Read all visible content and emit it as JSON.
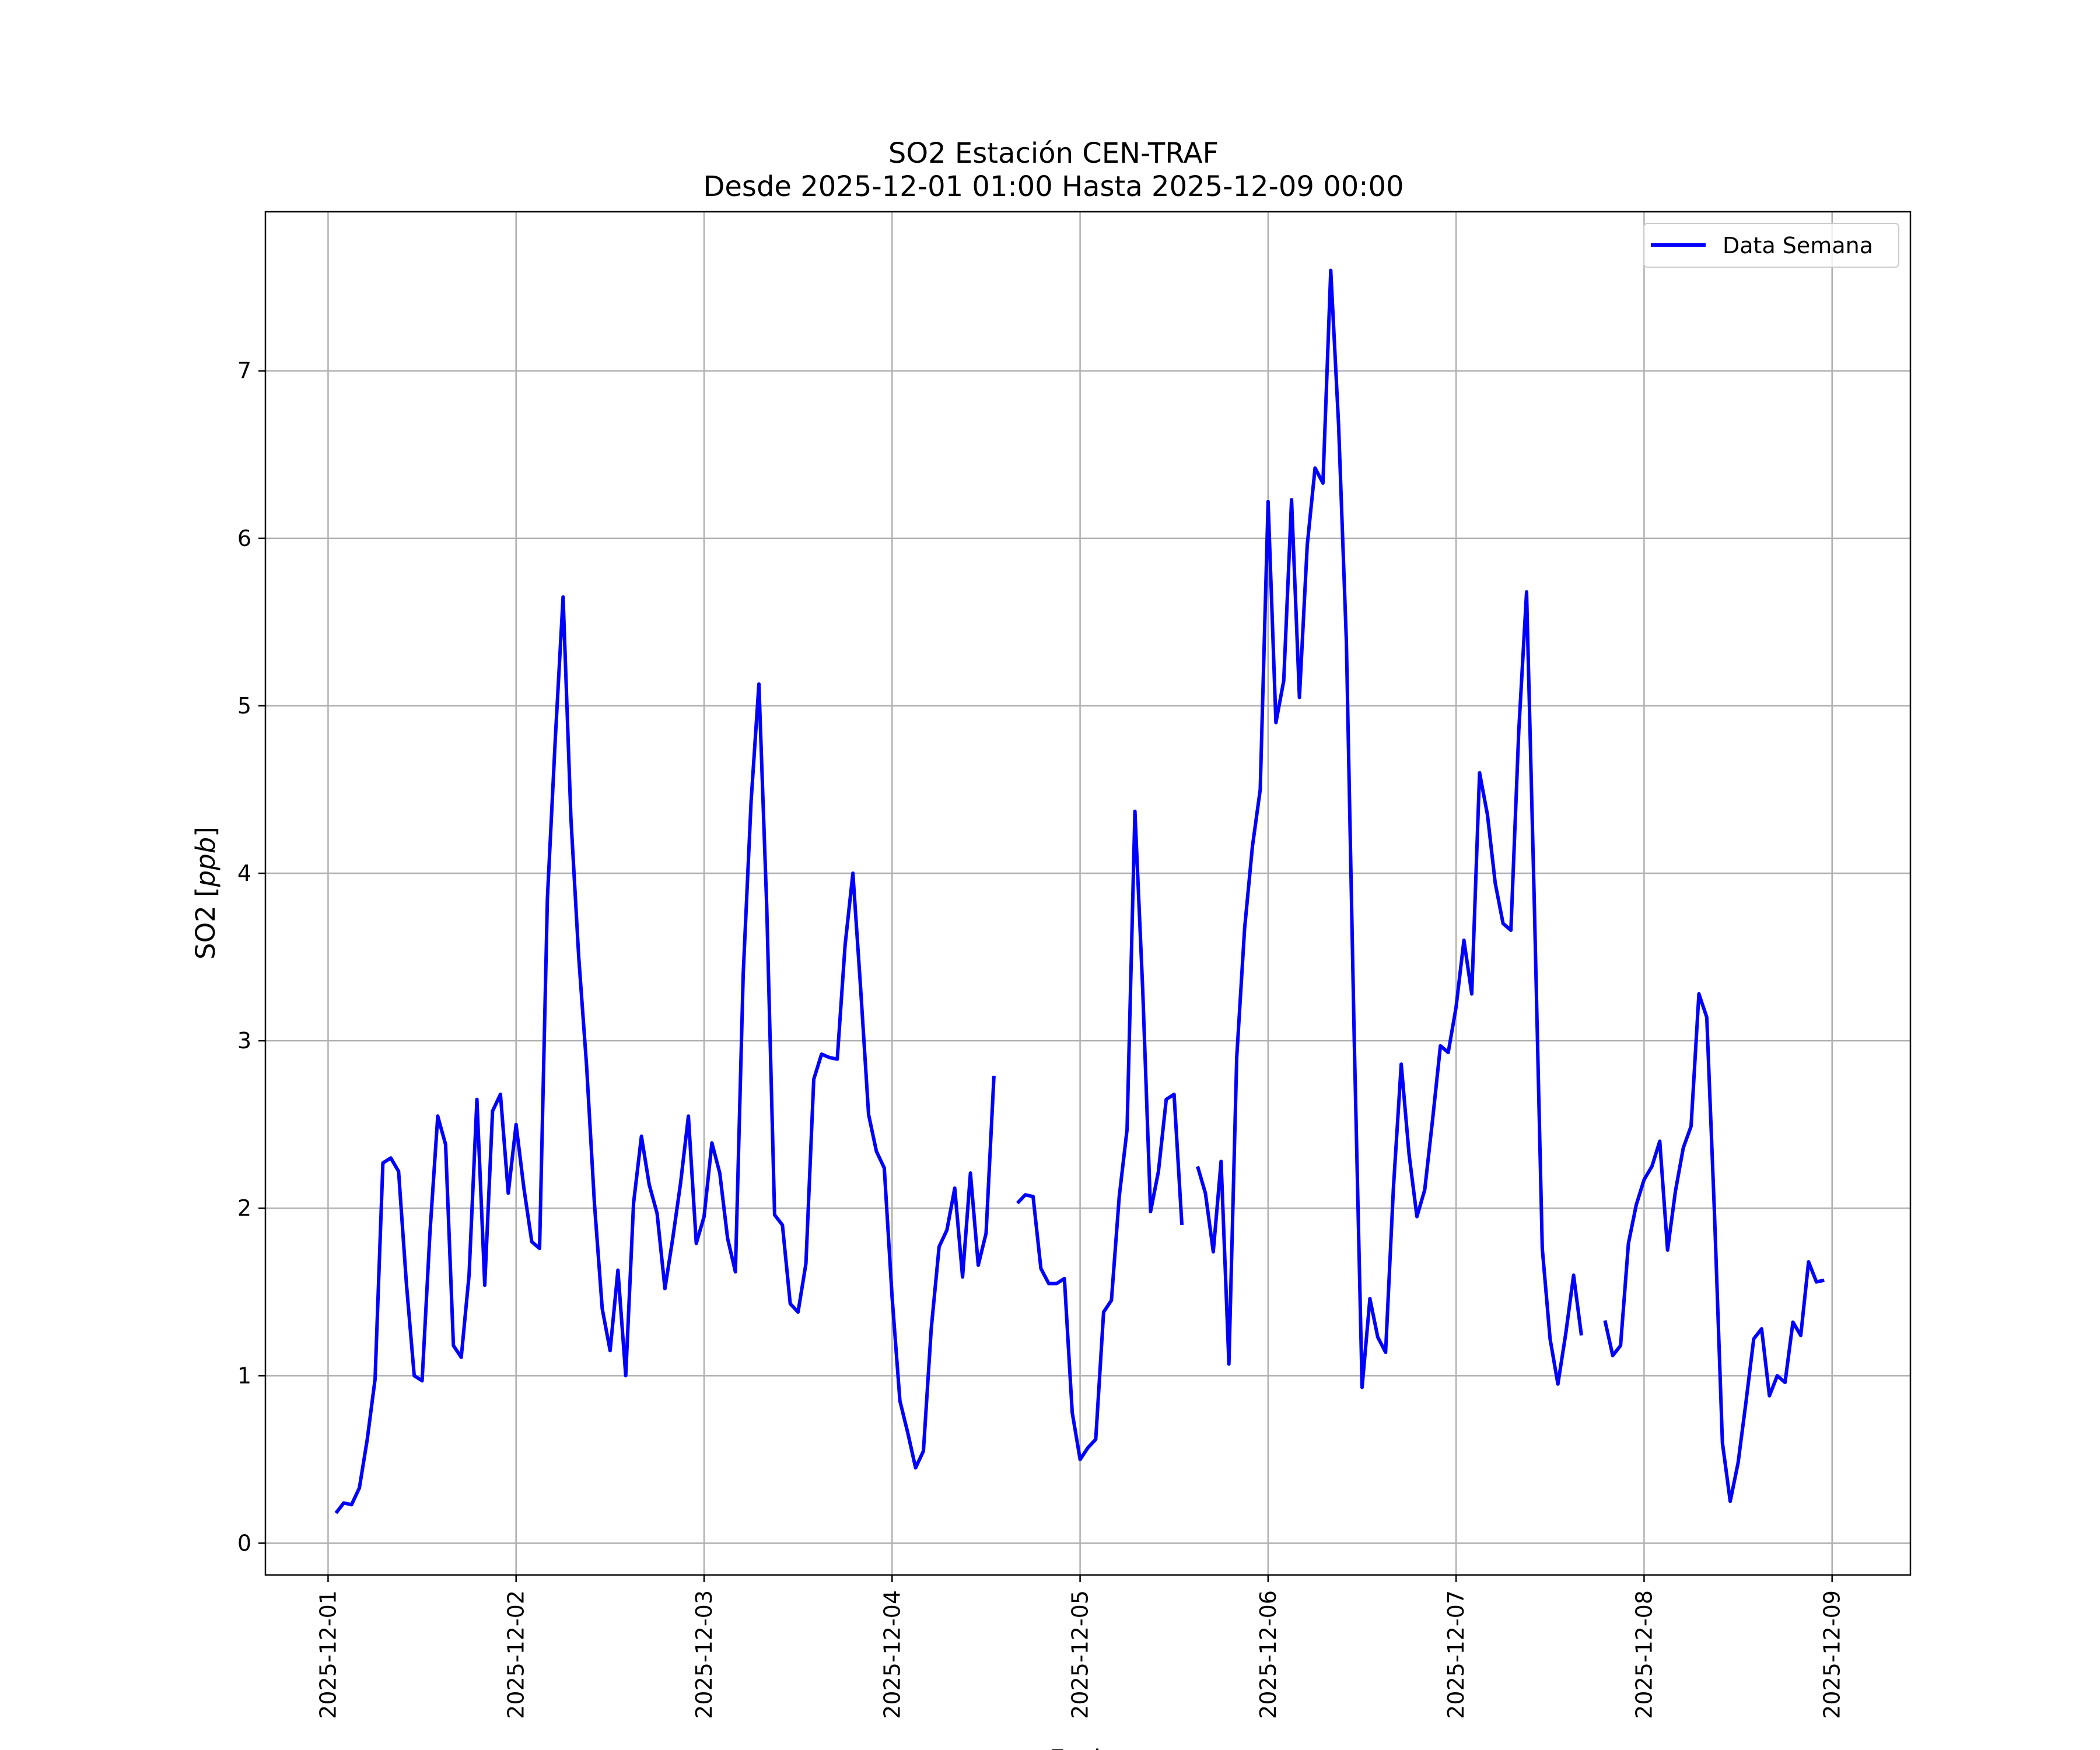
{
  "chart_data": {
    "type": "line",
    "title_line1": "SO2 Estación CEN-TRAF",
    "title_line2": "Desde 2025-12-01 01:00 Hasta 2025-12-09 00:00",
    "xlabel": "Fecha",
    "ylabel": "SO2 [ppb]",
    "ylabel_prefix": "SO2 [",
    "ylabel_unit": "ppb",
    "ylabel_suffix": "]",
    "xlim": [
      "2025-11-30 16:00",
      "2025-12-09 10:00"
    ],
    "ylim": [
      -0.19,
      7.95
    ],
    "x_ticks": [
      "2025-12-01",
      "2025-12-02",
      "2025-12-03",
      "2025-12-04",
      "2025-12-05",
      "2025-12-06",
      "2025-12-07",
      "2025-12-08",
      "2025-12-09"
    ],
    "y_ticks": [
      0,
      1,
      2,
      3,
      4,
      5,
      6,
      7
    ],
    "grid": true,
    "legend_position": "top-right",
    "line_color": "#0000ff",
    "series": [
      {
        "name": "Data Semana",
        "color": "#0000ff",
        "start": "2025-12-01 01:00",
        "step_hours": 1,
        "values": [
          0.18,
          0.24,
          0.23,
          0.33,
          0.62,
          0.98,
          2.27,
          2.3,
          2.22,
          1.55,
          1.0,
          0.97,
          1.85,
          2.55,
          2.38,
          1.18,
          1.11,
          1.6,
          2.65,
          1.54,
          2.58,
          2.68,
          2.09,
          2.5,
          2.12,
          1.8,
          1.76,
          3.85,
          4.8,
          5.65,
          4.33,
          3.5,
          2.85,
          2.03,
          1.4,
          1.15,
          1.63,
          1.0,
          2.03,
          2.43,
          2.14,
          1.97,
          1.52,
          1.82,
          2.15,
          2.55,
          1.79,
          1.95,
          2.39,
          2.21,
          1.82,
          1.62,
          3.4,
          4.43,
          5.13,
          3.8,
          1.96,
          1.9,
          1.43,
          1.38,
          1.67,
          2.77,
          2.92,
          2.9,
          2.89,
          3.57,
          4.0,
          3.3,
          2.56,
          2.34,
          2.24,
          1.47,
          0.85,
          0.66,
          0.45,
          0.55,
          1.28,
          1.77,
          1.87,
          2.12,
          1.59,
          2.21,
          1.66,
          1.85,
          2.79,
          null,
          null,
          2.03,
          2.08,
          2.07,
          1.64,
          1.55,
          1.55,
          1.58,
          0.78,
          0.5,
          0.57,
          0.62,
          1.38,
          1.45,
          2.07,
          2.47,
          4.37,
          3.3,
          1.98,
          2.22,
          2.65,
          2.68,
          1.9,
          null,
          2.25,
          2.09,
          1.74,
          2.28,
          1.07,
          2.9,
          3.67,
          4.16,
          4.5,
          6.22,
          4.9,
          5.15,
          6.23,
          5.05,
          5.96,
          6.42,
          6.33,
          7.6,
          6.68,
          5.38,
          3.0,
          0.93,
          1.46,
          1.23,
          1.14,
          2.12,
          2.86,
          2.32,
          1.95,
          2.11,
          2.53,
          2.97,
          2.93,
          3.2,
          3.6,
          3.28,
          4.6,
          4.35,
          3.94,
          3.7,
          3.66,
          4.85,
          5.68,
          3.8,
          1.76,
          1.22,
          0.95,
          1.25,
          1.6,
          1.24,
          null,
          null,
          1.33,
          1.12,
          1.18,
          1.79,
          2.02,
          2.17,
          2.25,
          2.4,
          1.75,
          2.1,
          2.36,
          2.49,
          3.28,
          3.14,
          1.95,
          0.6,
          0.25,
          0.48,
          0.84,
          1.22,
          1.28,
          0.88,
          1.0,
          0.96,
          1.32,
          1.24,
          1.68,
          1.56,
          1.57
        ]
      }
    ]
  }
}
